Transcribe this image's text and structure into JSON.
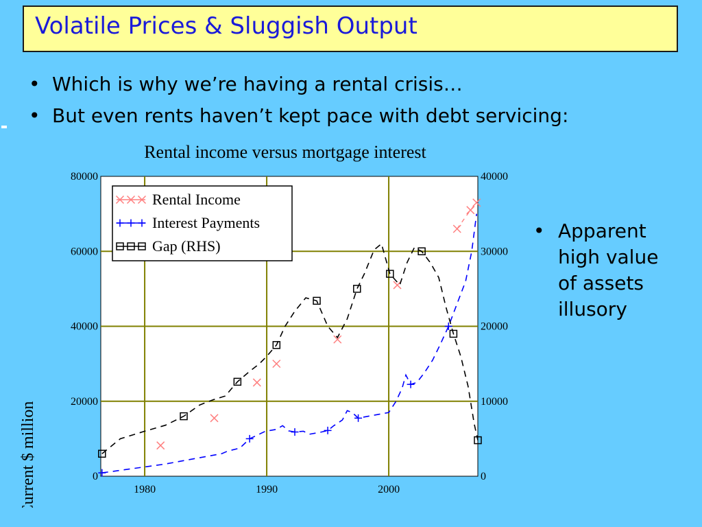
{
  "slide": {
    "title": "Volatile Prices & Sluggish Output",
    "bullets": [
      "Which is why we’re having a rental crisis…",
      "But even rents haven’t kept pace with debt servicing:"
    ],
    "side_bullet": "Apparent high value of assets illusory",
    "colors": {
      "background": "#66ccff",
      "title_bg": "#ffff99",
      "title_text": "#1a1ad9",
      "plot_bg": "#ffffff",
      "grid": "#808000"
    }
  },
  "chart_data": {
    "type": "line",
    "title": "Rental income versus mortgage interest",
    "ylabel": "Current $ million",
    "x_ticks": [
      "1980",
      "1990",
      "2000"
    ],
    "y_left_ticks": [
      "0",
      "20000",
      "40000",
      "60000",
      "80000"
    ],
    "y_right_ticks": [
      "0",
      "10000",
      "20000",
      "30000",
      "40000"
    ],
    "xlim": [
      1976.4,
      2007.3
    ],
    "ylim_left": [
      0,
      80000
    ],
    "ylim_right": [
      0,
      40000
    ],
    "grid": true,
    "legend_position": "top-left",
    "series": [
      {
        "name": "Rental Income",
        "axis": "left",
        "color": "#ff7f7f",
        "marker": "x",
        "points": [
          [
            1981.3,
            8200
          ],
          [
            1985.7,
            15500
          ],
          [
            1989.2,
            25000
          ],
          [
            1990.8,
            30000
          ],
          [
            1995.8,
            36500
          ],
          [
            2000.7,
            51000
          ],
          [
            2005.6,
            66000
          ],
          [
            2006.7,
            71000
          ],
          [
            2007.2,
            73000
          ]
        ]
      },
      {
        "name": "Interest Payments",
        "axis": "left",
        "color": "#0000ff",
        "marker": "+",
        "points": [
          [
            1976.5,
            900
          ],
          [
            1981.6,
            3200
          ],
          [
            1986.3,
            6000
          ],
          [
            1986.8,
            6700
          ],
          [
            1987.8,
            7500
          ],
          [
            1988.6,
            10000
          ],
          [
            1989.9,
            12000
          ],
          [
            1990.8,
            12500
          ],
          [
            1991.3,
            13500
          ],
          [
            1991.8,
            12100
          ],
          [
            1992.3,
            11800
          ],
          [
            1993.0,
            12000
          ],
          [
            1993.5,
            11200
          ],
          [
            1994.0,
            11500
          ],
          [
            1994.5,
            11800
          ],
          [
            1995.0,
            12200
          ],
          [
            1995.5,
            13500
          ],
          [
            1996.2,
            15000
          ],
          [
            1996.6,
            17500
          ],
          [
            1997.0,
            17000
          ],
          [
            1997.5,
            15500
          ],
          [
            2000.0,
            17000
          ],
          [
            2000.6,
            20000
          ],
          [
            2001.1,
            23500
          ],
          [
            2001.4,
            27000
          ],
          [
            2001.8,
            24500
          ],
          [
            2002.3,
            25000
          ],
          [
            2002.9,
            27500
          ],
          [
            2003.6,
            31000
          ],
          [
            2004.2,
            35000
          ],
          [
            2004.9,
            40000
          ],
          [
            2005.6,
            46000
          ],
          [
            2006.3,
            52000
          ],
          [
            2006.8,
            60000
          ],
          [
            2007.2,
            70000
          ]
        ]
      },
      {
        "name": "Gap (RHS)",
        "axis": "right",
        "color": "#000000",
        "marker": "square",
        "points": [
          [
            1976.5,
            3000
          ],
          [
            1978.0,
            5000
          ],
          [
            1980.0,
            6000
          ],
          [
            1981.7,
            6800
          ],
          [
            1983.2,
            8000
          ],
          [
            1984.5,
            9500
          ],
          [
            1985.6,
            10200
          ],
          [
            1986.6,
            10700
          ],
          [
            1987.6,
            12600
          ],
          [
            1988.6,
            14000
          ],
          [
            1989.4,
            15000
          ],
          [
            1990.0,
            16000
          ],
          [
            1990.8,
            17500
          ],
          [
            1991.5,
            20000
          ],
          [
            1992.3,
            22000
          ],
          [
            1993.2,
            23800
          ],
          [
            1994.1,
            23400
          ],
          [
            1995.0,
            20000
          ],
          [
            1995.8,
            18500
          ],
          [
            1996.6,
            21000
          ],
          [
            1997.4,
            25000
          ],
          [
            1998.0,
            27000
          ],
          [
            1998.8,
            30200
          ],
          [
            1999.4,
            31000
          ],
          [
            2000.1,
            27000
          ],
          [
            2000.9,
            25500
          ],
          [
            2001.5,
            28500
          ],
          [
            2002.1,
            30500
          ],
          [
            2002.7,
            30000
          ],
          [
            2003.4,
            28500
          ],
          [
            2004.1,
            26500
          ],
          [
            2004.7,
            22500
          ],
          [
            2005.3,
            19000
          ],
          [
            2005.9,
            16000
          ],
          [
            2006.5,
            12000
          ],
          [
            2007.0,
            7000
          ],
          [
            2007.3,
            4800
          ]
        ]
      }
    ]
  }
}
